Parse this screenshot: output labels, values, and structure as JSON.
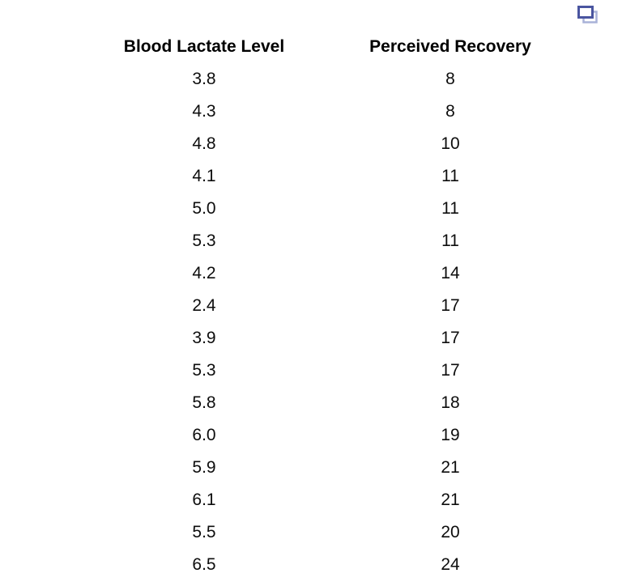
{
  "icons": {
    "popout_icon": "duplicate-window-icon"
  },
  "colors": {
    "icon_front_stroke": "#4a55a0",
    "icon_back_stroke": "#a9b2d8",
    "background": "#ffffff",
    "text": "#0d0d0d"
  },
  "chart_data": {
    "type": "table",
    "title": "",
    "columns": [
      "Blood Lactate Level",
      "Perceived Recovery"
    ],
    "rows": [
      [
        "3.8",
        "8"
      ],
      [
        "4.3",
        "8"
      ],
      [
        "4.8",
        "10"
      ],
      [
        "4.1",
        "11"
      ],
      [
        "5.0",
        "11"
      ],
      [
        "5.3",
        "11"
      ],
      [
        "4.2",
        "14"
      ],
      [
        "2.4",
        "17"
      ],
      [
        "3.9",
        "17"
      ],
      [
        "5.3",
        "17"
      ],
      [
        "5.8",
        "18"
      ],
      [
        "6.0",
        "19"
      ],
      [
        "5.9",
        "21"
      ],
      [
        "6.1",
        "21"
      ],
      [
        "5.5",
        "20"
      ],
      [
        "6.5",
        "24"
      ]
    ],
    "series": [
      {
        "name": "Blood Lactate Level",
        "values": [
          3.8,
          4.3,
          4.8,
          4.1,
          5.0,
          5.3,
          4.2,
          2.4,
          3.9,
          5.3,
          5.8,
          6.0,
          5.9,
          6.1,
          5.5,
          6.5
        ]
      },
      {
        "name": "Perceived Recovery",
        "values": [
          8,
          8,
          10,
          11,
          11,
          11,
          14,
          17,
          17,
          17,
          18,
          19,
          21,
          21,
          20,
          24
        ]
      }
    ],
    "layout": {
      "grid": false,
      "legend": "none",
      "header_bold": true,
      "columns_centered": true
    }
  }
}
